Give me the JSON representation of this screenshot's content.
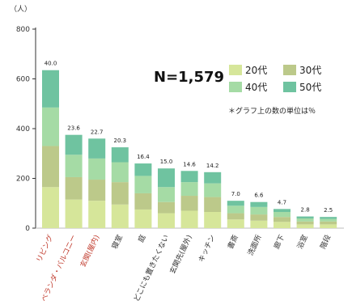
{
  "chart_data": {
    "type": "bar",
    "stacked": true,
    "y_unit_label": "（人）",
    "ylim": [
      0,
      800
    ],
    "yticks": [
      0,
      200,
      400,
      600,
      800
    ],
    "grid": false,
    "annotation": "N=1,579",
    "note": "＊グラフ上の数の単位は％",
    "legend_position": "top-right",
    "categories": [
      {
        "label": "リビング",
        "highlight": true,
        "pct": "40.0"
      },
      {
        "label": "ベランダ・バルコニー",
        "highlight": true,
        "pct": "23.6"
      },
      {
        "label": "玄関(屋内)",
        "highlight": true,
        "pct": "22.7"
      },
      {
        "label": "寝室",
        "highlight": false,
        "pct": "20.3"
      },
      {
        "label": "庭",
        "highlight": false,
        "pct": "16.4"
      },
      {
        "label": "どこにも置きたくない",
        "highlight": false,
        "pct": "15.0"
      },
      {
        "label": "玄関先(屋外)",
        "highlight": false,
        "pct": "14.6"
      },
      {
        "label": "キッチン",
        "highlight": false,
        "pct": "14.2"
      },
      {
        "label": "書斎",
        "highlight": false,
        "pct": "7.0"
      },
      {
        "label": "洗面所",
        "highlight": false,
        "pct": "6.6"
      },
      {
        "label": "廊下",
        "highlight": false,
        "pct": "4.7"
      },
      {
        "label": "浴室",
        "highlight": false,
        "pct": "2.8"
      },
      {
        "label": "階段",
        "highlight": false,
        "pct": "2.5"
      }
    ],
    "series": [
      {
        "name": "20代",
        "color": "#d6e69a",
        "values": [
          165,
          115,
          110,
          95,
          75,
          60,
          70,
          65,
          35,
          30,
          25,
          15,
          15
        ]
      },
      {
        "name": "30代",
        "color": "#bcc98a",
        "values": [
          165,
          90,
          85,
          90,
          65,
          45,
          60,
          60,
          25,
          25,
          20,
          12,
          12
        ]
      },
      {
        "name": "40代",
        "color": "#a5dba5",
        "values": [
          155,
          90,
          85,
          80,
          70,
          60,
          55,
          55,
          30,
          30,
          20,
          12,
          10
        ]
      },
      {
        "name": "50代",
        "color": "#6fc3a0",
        "values": [
          150,
          80,
          80,
          60,
          50,
          75,
          45,
          45,
          20,
          20,
          12,
          8,
          8
        ]
      }
    ],
    "colors": {
      "highlight_label": "#c0392b",
      "normal_label": "#333333",
      "axis": "#333333"
    }
  }
}
